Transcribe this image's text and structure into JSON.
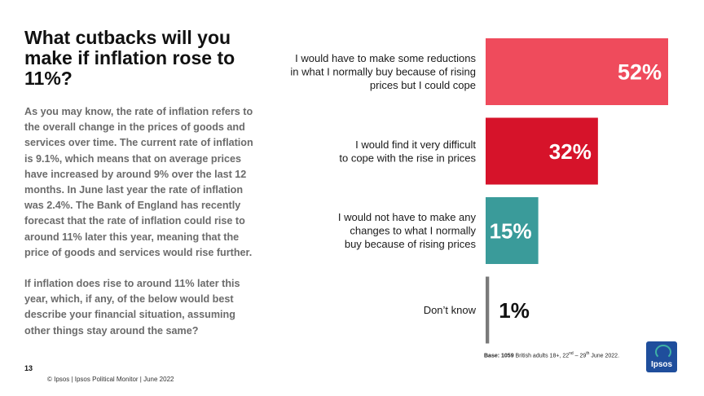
{
  "title": "What cutbacks will you make if inflation rose to 11%?",
  "intro_paragraph": "As you may know, the rate of inflation refers to the overall change in the prices of goods and services over time. The current rate of inflation is 9.1%, which means that on average prices have increased by around 9% over the last 12 months. In June last year the rate of inflation was 2.4%. The Bank of England has recently forecast that the rate of inflation could rise to around 11% later this year, meaning that the price of goods and services would rise further.",
  "question_paragraph": "If inflation does rise to around 11% later this year, which, if any, of the below would best describe your financial situation, assuming other things stay around the same?",
  "page_number": "13",
  "copyright": "© Ipsos | Ipsos  Political Monitor | June 2022",
  "base_note": {
    "label": "Base: 1059",
    "text": " British adults 18+, 22",
    "sup1": "nd",
    "mid": " – 29",
    "sup2": "th",
    "end": " June 2022."
  },
  "logo_text": "Ipsos",
  "chart_data": {
    "type": "bar",
    "orientation": "horizontal",
    "categories": [
      [
        "I would have to make some reductions",
        "in what I normally buy because of rising",
        "prices but I could cope"
      ],
      [
        "I would find it very difficult",
        "to cope with the rise in prices"
      ],
      [
        "I would not have to make any",
        "changes to what I normally",
        "buy because of rising prices"
      ],
      [
        "Don’t know"
      ]
    ],
    "values": [
      52,
      32,
      15,
      1
    ],
    "value_labels": [
      "52%",
      "32%",
      "15%",
      "1%"
    ],
    "colors": [
      "#ef4b5c",
      "#d6132a",
      "#3a9b9a",
      "#7a7a7a"
    ],
    "xlim": [
      0,
      52
    ],
    "grid": false,
    "legend": "none"
  }
}
